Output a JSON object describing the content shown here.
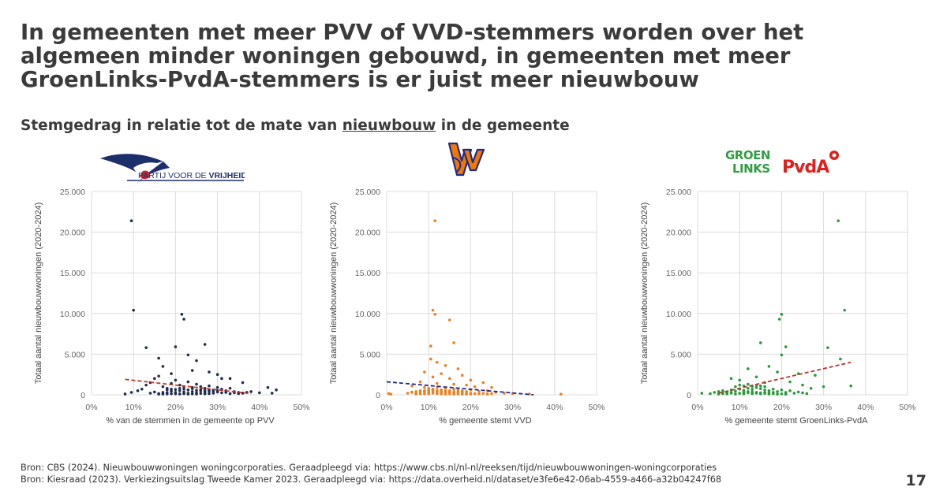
{
  "title": "In gemeenten met meer PVV of VVD-stemmers worden over het algemeen minder woningen gebouwd, in gemeenten met meer GroenLinks-PvdA-stemmers is er juist meer nieuwbouw",
  "subtitle": {
    "before": "Stemgedrag in relatie tot de mate van ",
    "underlined": "nieuwbouw",
    "after": " in de gemeente"
  },
  "logos": {
    "pvv": {
      "text_prefix": "PARTIJ VOOR DE ",
      "text_bold": "VRIJHEID",
      "icon": "pvv-dove-logo"
    },
    "vvd": {
      "text": "VVD",
      "icon": "vvd-logo",
      "colors": [
        "#1d2b8f",
        "#f07800"
      ]
    },
    "glpvda": {
      "text_line1": "GROEN",
      "text_line2": "LINKS",
      "text_pvda": "PvdA",
      "icon": "glpvda-logo",
      "colors": [
        "#2f9e41",
        "#e0201e"
      ]
    }
  },
  "sources": [
    "Bron: CBS (2024). Nieuwbouwwoningen woningcorporaties. Geraadpleegd via: https://www.cbs.nl/nl-nl/reeksen/tijd/nieuwbouwwoningen-woningcorporaties",
    "Bron: Kiesraad (2023). Verkiezingsuitslag Tweede Kamer 2023. Geraadpleegd via: https://data.overheid.nl/dataset/e3fe6e42-06ab-4559-a466-a32b04247f68"
  ],
  "page_number": "17",
  "chart_data": [
    {
      "type": "scatter",
      "id": "pvv",
      "color": "#1f2d4f",
      "trend_color": "#c0392b",
      "xlabel": "% van de stemmen in de gemeente op PVV",
      "ylabel": "Totaal aantal nieuwbouwwoningen (2020-2024)",
      "xlim": [
        0,
        50
      ],
      "ylim": [
        0,
        25000
      ],
      "xticks": [
        "0%",
        "10%",
        "20%",
        "30%",
        "40%",
        "50%"
      ],
      "yticks": [
        "0",
        "5.000",
        "10.000",
        "15.000",
        "20.000",
        "25.000"
      ],
      "grid": true,
      "trendline": [
        [
          8,
          1900
        ],
        [
          38,
          150
        ]
      ],
      "points": [
        [
          9.5,
          21400
        ],
        [
          10,
          10400
        ],
        [
          21.5,
          9900
        ],
        [
          22,
          9300
        ],
        [
          13,
          5800
        ],
        [
          20,
          5900
        ],
        [
          27,
          6200
        ],
        [
          16,
          4500
        ],
        [
          17,
          3500
        ],
        [
          25,
          4200
        ],
        [
          23,
          4900
        ],
        [
          24,
          3000
        ],
        [
          30,
          2500
        ],
        [
          31,
          2000
        ],
        [
          19,
          2600
        ],
        [
          28,
          2800
        ],
        [
          33,
          2000
        ],
        [
          36,
          1500
        ],
        [
          42,
          900
        ],
        [
          44,
          600
        ],
        [
          8,
          100
        ],
        [
          9.5,
          300
        ],
        [
          11,
          500
        ],
        [
          12,
          700
        ],
        [
          13,
          1200
        ],
        [
          14,
          1500
        ],
        [
          15,
          2000
        ],
        [
          16,
          2300
        ],
        [
          17,
          1000
        ],
        [
          18,
          800
        ],
        [
          19,
          1400
        ],
        [
          20,
          1800
        ],
        [
          21,
          1200
        ],
        [
          22,
          1000
        ],
        [
          23,
          1600
        ],
        [
          24,
          900
        ],
        [
          25,
          1300
        ],
        [
          26,
          1000
        ],
        [
          27,
          800
        ],
        [
          28,
          1100
        ],
        [
          29,
          600
        ],
        [
          30,
          900
        ],
        [
          31,
          700
        ],
        [
          32,
          500
        ],
        [
          33,
          800
        ],
        [
          34,
          400
        ],
        [
          35,
          300
        ],
        [
          37,
          300
        ],
        [
          38,
          400
        ],
        [
          40,
          250
        ],
        [
          43,
          200
        ],
        [
          14,
          200
        ],
        [
          15,
          350
        ],
        [
          16,
          150
        ],
        [
          17,
          300
        ],
        [
          18,
          250
        ],
        [
          19,
          450
        ],
        [
          20,
          300
        ],
        [
          21,
          500
        ],
        [
          22,
          350
        ],
        [
          23,
          200
        ],
        [
          24,
          400
        ],
        [
          25,
          250
        ],
        [
          26,
          500
        ],
        [
          27,
          300
        ],
        [
          28,
          450
        ],
        [
          29,
          200
        ],
        [
          30,
          350
        ],
        [
          31,
          250
        ],
        [
          32,
          300
        ],
        [
          33,
          150
        ],
        [
          34,
          250
        ],
        [
          35,
          150
        ],
        [
          36,
          200
        ],
        [
          18,
          600
        ],
        [
          19,
          700
        ],
        [
          20,
          650
        ],
        [
          21,
          800
        ],
        [
          22,
          700
        ],
        [
          23,
          600
        ],
        [
          24,
          750
        ],
        [
          25,
          550
        ],
        [
          26,
          650
        ],
        [
          27,
          500
        ],
        [
          28,
          600
        ],
        [
          29,
          450
        ],
        [
          30,
          500
        ],
        [
          22,
          150
        ],
        [
          23,
          100
        ],
        [
          24,
          120
        ],
        [
          25,
          100
        ],
        [
          26,
          180
        ],
        [
          27,
          120
        ],
        [
          28,
          150
        ],
        [
          21,
          100
        ],
        [
          20,
          120
        ],
        [
          19,
          130
        ],
        [
          18,
          110
        ],
        [
          17,
          100
        ],
        [
          16,
          90
        ]
      ]
    },
    {
      "type": "scatter",
      "id": "vvd",
      "color": "#f07f1f",
      "trend_color": "#1d2b8f",
      "xlabel": "% gemeente stemt VVD",
      "ylabel": "Totaal aantal nieuwbouwwoningen (2020-2024)",
      "xlim": [
        0,
        50
      ],
      "ylim": [
        0,
        25000
      ],
      "xticks": [
        "0%",
        "10%",
        "20%",
        "30%",
        "40%",
        "50%"
      ],
      "yticks": [
        "0",
        "5.000",
        "10.000",
        "15.000",
        "20.000",
        "25.000"
      ],
      "grid": true,
      "trendline": [
        [
          0,
          1600
        ],
        [
          35,
          0
        ]
      ],
      "points": [
        [
          11.5,
          21400
        ],
        [
          11,
          10400
        ],
        [
          11.5,
          9900
        ],
        [
          15,
          9200
        ],
        [
          10.5,
          6000
        ],
        [
          16,
          6400
        ],
        [
          10.5,
          4400
        ],
        [
          12,
          4000
        ],
        [
          14,
          3600
        ],
        [
          17,
          3200
        ],
        [
          9,
          2800
        ],
        [
          13,
          2600
        ],
        [
          18,
          2400
        ],
        [
          11,
          2200
        ],
        [
          15,
          2000
        ],
        [
          20,
          1800
        ],
        [
          23,
          1500
        ],
        [
          8,
          1600
        ],
        [
          12,
          1400
        ],
        [
          16,
          1300
        ],
        [
          19,
          1200
        ],
        [
          21,
          1000
        ],
        [
          25,
          900
        ],
        [
          6,
          1100
        ],
        [
          9,
          900
        ],
        [
          10,
          800
        ],
        [
          11,
          700
        ],
        [
          12,
          900
        ],
        [
          13,
          600
        ],
        [
          14,
          800
        ],
        [
          15,
          500
        ],
        [
          16,
          700
        ],
        [
          17,
          600
        ],
        [
          18,
          500
        ],
        [
          19,
          400
        ],
        [
          20,
          600
        ],
        [
          22,
          400
        ],
        [
          24,
          500
        ],
        [
          26,
          300
        ],
        [
          28,
          200
        ],
        [
          30,
          150
        ],
        [
          34,
          100
        ],
        [
          41.5,
          80
        ],
        [
          0.5,
          150
        ],
        [
          1,
          80
        ],
        [
          5,
          200
        ],
        [
          6,
          300
        ],
        [
          7,
          250
        ],
        [
          8,
          400
        ],
        [
          9,
          350
        ],
        [
          10,
          300
        ],
        [
          11,
          450
        ],
        [
          12,
          350
        ],
        [
          13,
          300
        ],
        [
          14,
          250
        ],
        [
          15,
          300
        ],
        [
          16,
          200
        ],
        [
          17,
          250
        ],
        [
          18,
          200
        ],
        [
          19,
          150
        ],
        [
          20,
          200
        ],
        [
          21,
          150
        ],
        [
          22,
          120
        ],
        [
          23,
          180
        ],
        [
          24,
          100
        ],
        [
          25,
          150
        ],
        [
          7,
          100
        ],
        [
          8,
          150
        ],
        [
          9,
          120
        ],
        [
          10,
          150
        ],
        [
          11,
          200
        ],
        [
          12,
          150
        ],
        [
          13,
          120
        ],
        [
          14,
          100
        ],
        [
          15,
          120
        ],
        [
          16,
          90
        ],
        [
          17,
          100
        ],
        [
          18,
          80
        ],
        [
          19,
          90
        ],
        [
          20,
          80
        ],
        [
          10,
          550
        ],
        [
          11,
          600
        ],
        [
          12,
          520
        ],
        [
          13,
          480
        ],
        [
          14,
          450
        ],
        [
          15,
          400
        ],
        [
          16,
          380
        ],
        [
          17,
          350
        ],
        [
          18,
          320
        ],
        [
          9,
          500
        ],
        [
          8,
          500
        ],
        [
          7,
          400
        ],
        [
          6,
          350
        ]
      ]
    },
    {
      "type": "scatter",
      "id": "glpvda",
      "color": "#2a9a3c",
      "trend_color": "#b03a2e",
      "xlabel": "% gemeente stemt GroenLinks-PvdA",
      "ylabel": "Totaal aantal nieuwbouwwoningen (2020-2024)",
      "xlim": [
        0,
        50
      ],
      "ylim": [
        0,
        25000
      ],
      "xticks": [
        "0%",
        "10%",
        "20%",
        "30%",
        "40%",
        "50%"
      ],
      "yticks": [
        "0",
        "5.000",
        "10.000",
        "15.000",
        "20.000",
        "25.000"
      ],
      "grid": true,
      "trendline": [
        [
          5,
          200
        ],
        [
          36.5,
          4000
        ]
      ],
      "points": [
        [
          33.5,
          21400
        ],
        [
          35,
          10400
        ],
        [
          20,
          9900
        ],
        [
          19.5,
          9300
        ],
        [
          15,
          6400
        ],
        [
          21,
          5900
        ],
        [
          31,
          5800
        ],
        [
          34,
          4400
        ],
        [
          20,
          4900
        ],
        [
          36.5,
          1100
        ],
        [
          17,
          3500
        ],
        [
          12,
          3200
        ],
        [
          24,
          2600
        ],
        [
          28,
          2400
        ],
        [
          19,
          2800
        ],
        [
          8,
          2000
        ],
        [
          10,
          1800
        ],
        [
          14,
          2200
        ],
        [
          16,
          1500
        ],
        [
          22,
          1600
        ],
        [
          25,
          1200
        ],
        [
          30,
          1000
        ],
        [
          27,
          800
        ],
        [
          1,
          200
        ],
        [
          3,
          150
        ],
        [
          4,
          300
        ],
        [
          5,
          400
        ],
        [
          6,
          500
        ],
        [
          7,
          350
        ],
        [
          8,
          600
        ],
        [
          9,
          450
        ],
        [
          10,
          700
        ],
        [
          11,
          550
        ],
        [
          12,
          800
        ],
        [
          13,
          650
        ],
        [
          14,
          900
        ],
        [
          15,
          750
        ],
        [
          16,
          600
        ],
        [
          17,
          500
        ],
        [
          18,
          700
        ],
        [
          19,
          400
        ],
        [
          20,
          600
        ],
        [
          21,
          300
        ],
        [
          22,
          500
        ],
        [
          23,
          200
        ],
        [
          24,
          350
        ],
        [
          25,
          250
        ],
        [
          26,
          150
        ],
        [
          5,
          100
        ],
        [
          6,
          150
        ],
        [
          7,
          120
        ],
        [
          8,
          200
        ],
        [
          9,
          100
        ],
        [
          10,
          180
        ],
        [
          11,
          120
        ],
        [
          12,
          250
        ],
        [
          13,
          150
        ],
        [
          14,
          200
        ],
        [
          15,
          120
        ],
        [
          16,
          180
        ],
        [
          17,
          100
        ],
        [
          18,
          150
        ],
        [
          19,
          80
        ],
        [
          20,
          120
        ],
        [
          21,
          90
        ],
        [
          9,
          1000
        ],
        [
          10,
          1200
        ],
        [
          11,
          1100
        ],
        [
          12,
          1300
        ],
        [
          13,
          1000
        ],
        [
          14,
          1200
        ],
        [
          15,
          1100
        ],
        [
          16,
          1000
        ],
        [
          11,
          300
        ],
        [
          12,
          400
        ],
        [
          13,
          350
        ],
        [
          14,
          300
        ],
        [
          15,
          250
        ],
        [
          8,
          300
        ],
        [
          7,
          250
        ],
        [
          6,
          200
        ],
        [
          18,
          300
        ],
        [
          17,
          250
        ],
        [
          16,
          300
        ]
      ]
    }
  ]
}
